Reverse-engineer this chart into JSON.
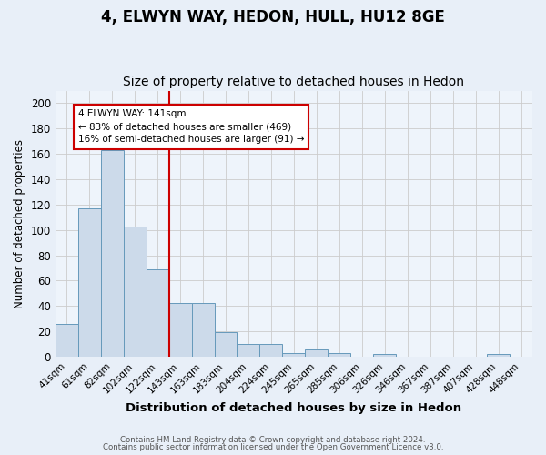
{
  "title": "4, ELWYN WAY, HEDON, HULL, HU12 8GE",
  "subtitle": "Size of property relative to detached houses in Hedon",
  "xlabel": "Distribution of detached houses by size in Hedon",
  "ylabel": "Number of detached properties",
  "categories": [
    "41sqm",
    "61sqm",
    "82sqm",
    "102sqm",
    "122sqm",
    "143sqm",
    "163sqm",
    "183sqm",
    "204sqm",
    "224sqm",
    "245sqm",
    "265sqm",
    "285sqm",
    "306sqm",
    "326sqm",
    "346sqm",
    "367sqm",
    "387sqm",
    "407sqm",
    "428sqm",
    "448sqm"
  ],
  "values": [
    26,
    117,
    163,
    103,
    69,
    42,
    42,
    19,
    10,
    10,
    3,
    6,
    3,
    0,
    2,
    0,
    0,
    0,
    0,
    2,
    0
  ],
  "bar_color": "#ccdaea",
  "bar_edge_color": "#6699bb",
  "annotation_line1": "4 ELWYN WAY: 141sqm",
  "annotation_line2": "← 83% of detached houses are smaller (469)",
  "annotation_line3": "16% of semi-detached houses are larger (91) →",
  "ylim": [
    0,
    210
  ],
  "yticks": [
    0,
    20,
    40,
    60,
    80,
    100,
    120,
    140,
    160,
    180,
    200
  ],
  "footer1": "Contains HM Land Registry data © Crown copyright and database right 2024.",
  "footer2": "Contains public sector information licensed under the Open Government Licence v3.0.",
  "bg_color": "#e8eff8",
  "plot_bg_color": "#eef4fb",
  "grid_color": "#cccccc",
  "title_fontsize": 12,
  "subtitle_fontsize": 10,
  "annotation_box_color": "white",
  "annotation_box_edge": "#cc0000",
  "red_line_color": "#cc0000",
  "footer_color": "#555555"
}
